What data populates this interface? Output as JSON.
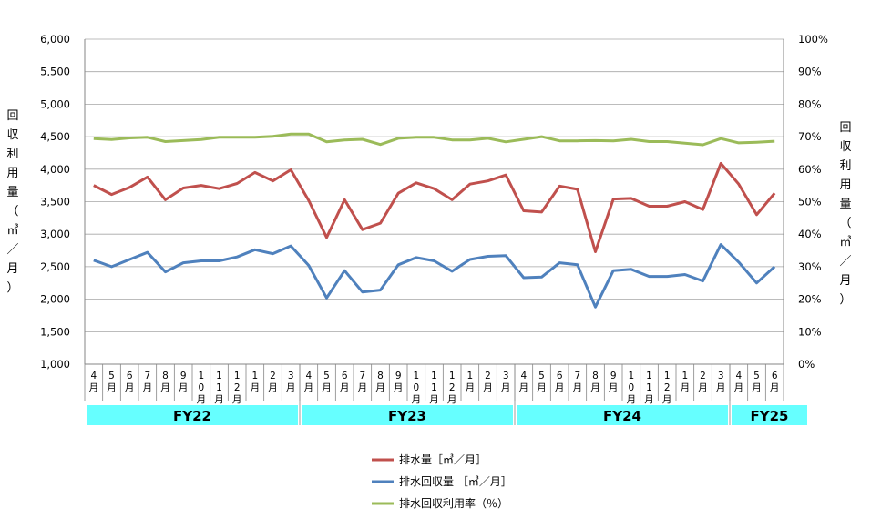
{
  "chart_data": {
    "type": "line",
    "title": "",
    "ylabel_left": "回収利用量（㎥／月）",
    "ylabel_right": "回収利用量（㎥／月）",
    "ylim_left": [
      1000,
      6000
    ],
    "ylim_right": [
      0,
      100
    ],
    "yticks_left": [
      "1,000",
      "1,500",
      "2,000",
      "2,500",
      "3,000",
      "3,500",
      "4,000",
      "4,500",
      "5,000",
      "5,500",
      "6,000"
    ],
    "yticks_right": [
      "0%",
      "10%",
      "20%",
      "30%",
      "40%",
      "50%",
      "60%",
      "70%",
      "80%",
      "90%",
      "100%"
    ],
    "grid": true,
    "legend_position": "bottom",
    "categories": [
      "4月",
      "5月",
      "6月",
      "7月",
      "8月",
      "9月",
      "10月",
      "11月",
      "12月",
      "1月",
      "2月",
      "3月",
      "4月",
      "5月",
      "6月",
      "7月",
      "8月",
      "9月",
      "10月",
      "11月",
      "12月",
      "1月",
      "2月",
      "3月",
      "4月",
      "5月",
      "6月",
      "7月",
      "8月",
      "9月",
      "10月",
      "11月",
      "12月",
      "1月",
      "2月",
      "3月",
      "4月",
      "5月",
      "6月"
    ],
    "fiscal_years": [
      {
        "label": "FY22",
        "start": 0,
        "end": 11
      },
      {
        "label": "FY23",
        "start": 12,
        "end": 23
      },
      {
        "label": "FY24",
        "start": 24,
        "end": 35
      },
      {
        "label": "FY25",
        "start": 36,
        "end": 38
      }
    ],
    "series": [
      {
        "name": "排水量［㎥／月］",
        "axis": "left",
        "color": "#c0504d",
        "values": [
          3750,
          3610,
          3720,
          3880,
          3530,
          3710,
          3750,
          3700,
          3780,
          3950,
          3820,
          3990,
          3520,
          2950,
          3530,
          3070,
          3170,
          3630,
          3790,
          3700,
          3530,
          3770,
          3820,
          3910,
          3360,
          3340,
          3740,
          3690,
          2730,
          3540,
          3550,
          3430,
          3430,
          3500,
          3380,
          4090,
          3770,
          3300,
          3630
        ]
      },
      {
        "name": "排水回収量 ［㎥／月］",
        "axis": "left",
        "color": "#4f81bd",
        "values": [
          2600,
          2500,
          2610,
          2720,
          2420,
          2560,
          2590,
          2590,
          2650,
          2760,
          2700,
          2820,
          2520,
          2020,
          2440,
          2110,
          2140,
          2530,
          2640,
          2590,
          2430,
          2610,
          2660,
          2670,
          2330,
          2340,
          2560,
          2530,
          1880,
          2440,
          2460,
          2350,
          2350,
          2380,
          2280,
          2840,
          2570,
          2250,
          2500
        ]
      },
      {
        "name": "排水回収利用率（％）",
        "axis": "right",
        "color": "#9bbb59",
        "values": [
          69.4,
          69.1,
          69.6,
          69.8,
          68.5,
          68.8,
          69.1,
          69.8,
          69.8,
          69.8,
          70.1,
          70.8,
          70.8,
          68.4,
          69.0,
          69.2,
          67.6,
          69.5,
          69.8,
          69.8,
          69.0,
          69.0,
          69.5,
          68.4,
          69.2,
          70.0,
          68.7,
          68.7,
          68.8,
          68.7,
          69.2,
          68.5,
          68.5,
          68.0,
          67.5,
          69.4,
          68.1,
          68.3,
          68.6
        ]
      }
    ]
  }
}
